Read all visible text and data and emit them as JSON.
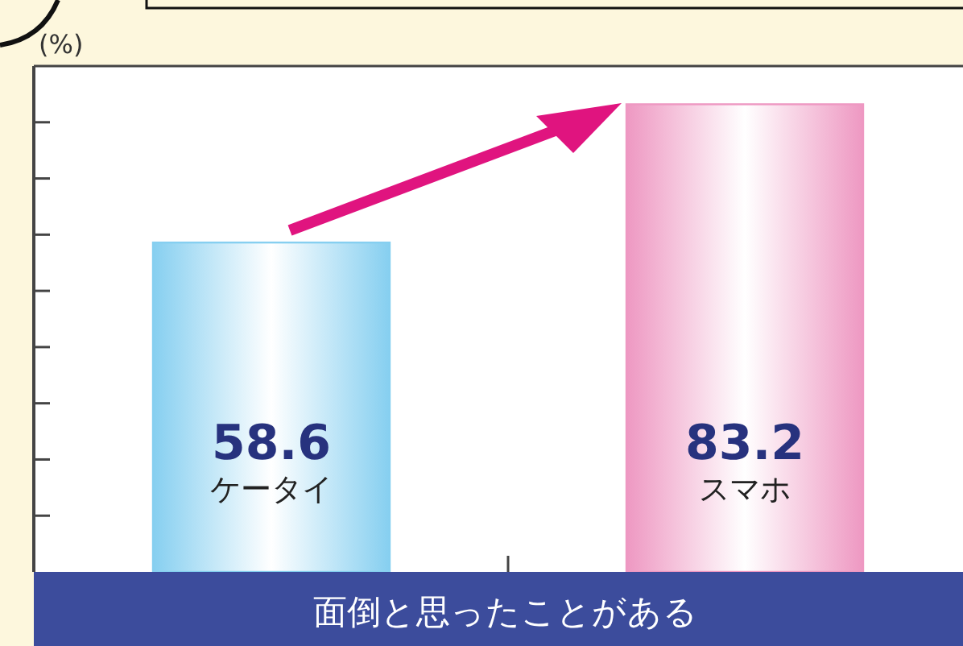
{
  "chart_data": {
    "type": "bar",
    "ylabel": "(%)",
    "xlabel": "面倒と思ったことがある",
    "categories": [
      "ケータイ",
      "スマホ"
    ],
    "values": [
      58.6,
      83.2
    ],
    "colors": [
      "#86cff0",
      "#ee98c2"
    ],
    "ylim": [
      0,
      90
    ],
    "yticks": [
      {
        "value": 10,
        "label": null
      },
      {
        "value": 20,
        "label": null
      },
      {
        "value": 30,
        "label": null
      },
      {
        "value": 40,
        "label": null
      },
      {
        "value": 50,
        "label": null
      },
      {
        "value": 60,
        "label": null
      },
      {
        "value": 70,
        "label": null
      },
      {
        "value": 80,
        "label": null
      }
    ],
    "data_labels": true,
    "grid": false
  }
}
